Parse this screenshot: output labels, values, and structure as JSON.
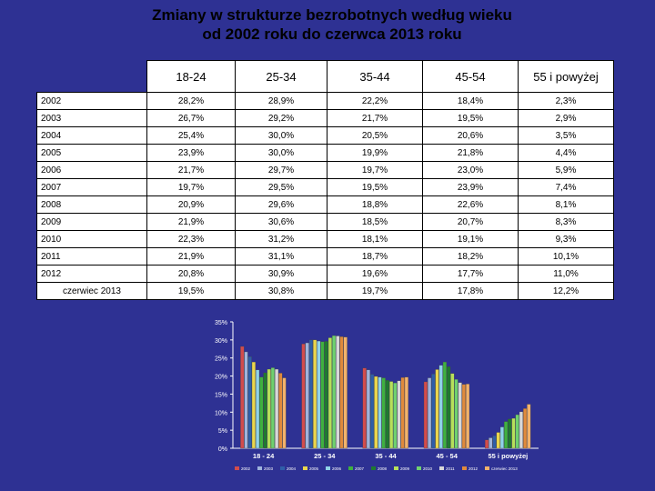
{
  "title_line1": "Zmiany w strukturze bezrobotnych według wieku",
  "title_line2": "od 2002 roku do czerwca 2013 roku",
  "table": {
    "headers": [
      "18-24",
      "25-34",
      "35-44",
      "45-54",
      "55 i powyżej"
    ],
    "rows": [
      {
        "label": "2002",
        "values": [
          "28,2%",
          "28,9%",
          "22,2%",
          "18,4%",
          "2,3%"
        ]
      },
      {
        "label": "2003",
        "values": [
          "26,7%",
          "29,2%",
          "21,7%",
          "19,5%",
          "2,9%"
        ]
      },
      {
        "label": "2004",
        "values": [
          "25,4%",
          "30,0%",
          "20,5%",
          "20,6%",
          "3,5%"
        ]
      },
      {
        "label": "2005",
        "values": [
          "23,9%",
          "30,0%",
          "19,9%",
          "21,8%",
          "4,4%"
        ]
      },
      {
        "label": "2006",
        "values": [
          "21,7%",
          "29,7%",
          "19,7%",
          "23,0%",
          "5,9%"
        ]
      },
      {
        "label": "2007",
        "values": [
          "19,7%",
          "29,5%",
          "19,5%",
          "23,9%",
          "7,4%"
        ]
      },
      {
        "label": "2008",
        "values": [
          "20,9%",
          "29,6%",
          "18,8%",
          "22,6%",
          "8,1%"
        ]
      },
      {
        "label": "2009",
        "values": [
          "21,9%",
          "30,6%",
          "18,5%",
          "20,7%",
          "8,3%"
        ]
      },
      {
        "label": "2010",
        "values": [
          "22,3%",
          "31,2%",
          "18,1%",
          "19,1%",
          "9,3%"
        ]
      },
      {
        "label": "2011",
        "values": [
          "21,9%",
          "31,1%",
          "18,7%",
          "18,2%",
          "10,1%"
        ]
      },
      {
        "label": "2012",
        "values": [
          "20,8%",
          "30,9%",
          "19,6%",
          "17,7%",
          "11,0%"
        ]
      },
      {
        "label": "czerwiec 2013",
        "values": [
          "19,5%",
          "30,8%",
          "19,7%",
          "17,8%",
          "12,2%"
        ]
      }
    ]
  },
  "chart_data": {
    "type": "bar",
    "categories": [
      "18 - 24",
      "25 - 34",
      "35 - 44",
      "45 - 54",
      "55 i powyżej"
    ],
    "ylim": [
      0,
      35
    ],
    "yticks": [
      "0%",
      "5%",
      "10%",
      "15%",
      "20%",
      "25%",
      "30%",
      "35%"
    ],
    "grid": false,
    "legend_position": "bottom",
    "series": [
      {
        "name": "2002",
        "color": "#d24c4c",
        "values": [
          28.2,
          28.9,
          22.2,
          18.4,
          2.3
        ]
      },
      {
        "name": "2003",
        "color": "#9fb4dc",
        "values": [
          26.7,
          29.2,
          21.7,
          19.5,
          2.9
        ]
      },
      {
        "name": "2004",
        "color": "#2f5ea8",
        "values": [
          25.4,
          30.0,
          20.5,
          20.6,
          3.5
        ]
      },
      {
        "name": "2005",
        "color": "#ead64c",
        "values": [
          23.9,
          30.0,
          19.9,
          21.8,
          4.4
        ]
      },
      {
        "name": "2006",
        "color": "#8fd3e8",
        "values": [
          21.7,
          29.7,
          19.7,
          23.0,
          5.9
        ]
      },
      {
        "name": "2007",
        "color": "#3fb13f",
        "values": [
          19.7,
          29.5,
          19.5,
          23.9,
          7.4
        ]
      },
      {
        "name": "2008",
        "color": "#1f7a2f",
        "values": [
          20.9,
          29.6,
          18.8,
          22.6,
          8.1
        ]
      },
      {
        "name": "2009",
        "color": "#b7e05a",
        "values": [
          21.9,
          30.6,
          18.5,
          20.7,
          8.3
        ]
      },
      {
        "name": "2010",
        "color": "#6fd16f",
        "values": [
          22.3,
          31.2,
          18.1,
          19.1,
          9.3
        ]
      },
      {
        "name": "2011",
        "color": "#d8d8d8",
        "values": [
          21.9,
          31.1,
          18.7,
          18.2,
          10.1
        ]
      },
      {
        "name": "2012",
        "color": "#e08a3c",
        "values": [
          20.8,
          30.9,
          19.6,
          17.7,
          11.0
        ]
      },
      {
        "name": "czerwiec 2013",
        "color": "#f2b26b",
        "values": [
          19.5,
          30.8,
          19.7,
          17.8,
          12.2
        ]
      }
    ]
  }
}
